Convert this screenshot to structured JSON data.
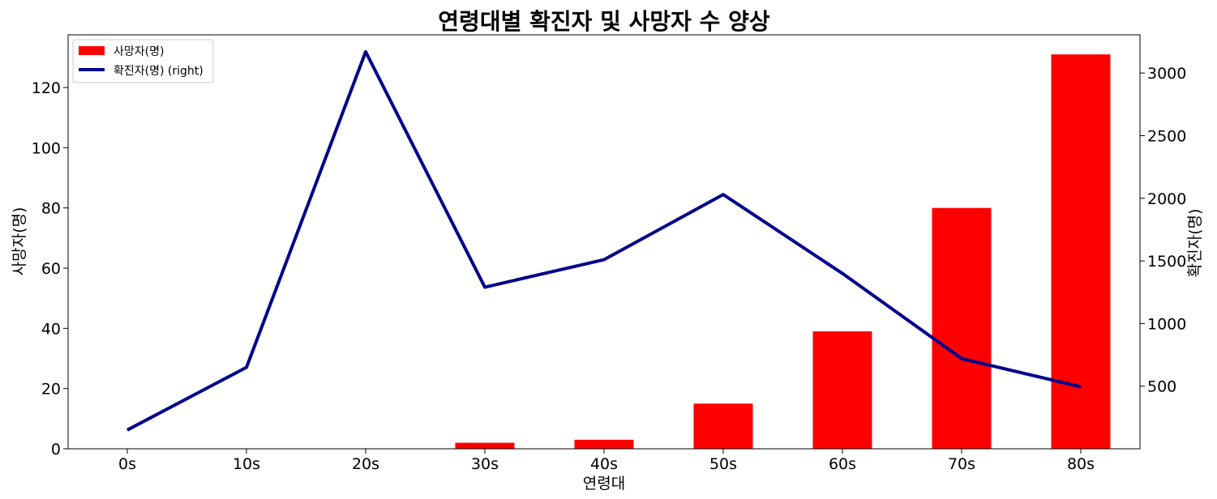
{
  "chart_data": {
    "type": "bar",
    "title": "연령대별 확진자 및 사망자 수 양상",
    "xlabel": "연령대",
    "ylabel_left": "사망자(명)",
    "ylabel_right": "확진자(명)",
    "categories": [
      "0s",
      "10s",
      "20s",
      "30s",
      "40s",
      "50s",
      "60s",
      "70s",
      "80s"
    ],
    "series": [
      {
        "name": "사망자(명)",
        "type": "bar",
        "axis": "left",
        "color": "#ff0000",
        "values": [
          0,
          0,
          0,
          2,
          3,
          15,
          39,
          80,
          131
        ]
      },
      {
        "name": "확진자(명) (right)",
        "type": "line",
        "axis": "right",
        "color": "#00008b",
        "values": [
          150,
          650,
          3170,
          1290,
          1510,
          2030,
          1400,
          720,
          495
        ]
      }
    ],
    "ylim_left": [
      0,
      137.5
    ],
    "ylim_right": [
      0,
      3305
    ],
    "yticks_left": [
      0,
      20,
      40,
      60,
      80,
      100,
      120
    ],
    "yticks_right": [
      500,
      1000,
      1500,
      2000,
      2500,
      3000
    ],
    "grid": false,
    "legend": "top-left"
  }
}
